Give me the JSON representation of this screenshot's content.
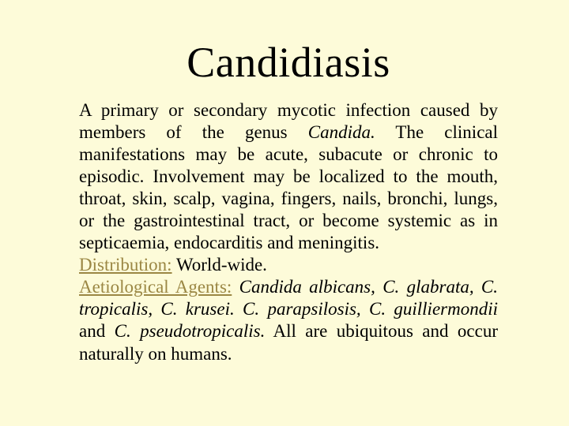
{
  "colors": {
    "background": "#fdfbd9",
    "text": "#000000",
    "label": "#9b8744"
  },
  "typography": {
    "title_font": "Comic Sans MS",
    "body_font": "Times New Roman",
    "title_fontsize": 54,
    "body_fontsize": 23,
    "body_lineheight": 1.22,
    "body_align": "justify"
  },
  "title": "Candidiasis",
  "body": {
    "p1a": "A primary or secondary mycotic infection caused by members of the genus ",
    "p1_i1": "Candida.",
    "p1b": "   The clinical manifestations may be acute, subacute or chronic to episodic.  Involvement may be localized to the mouth, throat, skin, scalp, vagina, fingers, nails, bronchi, lungs, or the gastrointestinal tract, or become systemic as in septicaemia, endocarditis and meningitis.",
    "dist_label": "Distribution:",
    "dist_text": "  World-wide.",
    "aet_label": "Aetiological Agents:",
    "aet_a": "   ",
    "aet_i": "Candida albicans, C. glabrata, C. tropicalis, C. krusei. C.  parapsilosis, C. guilliermondii",
    "aet_b": " and ",
    "aet_i2": "C. pseudotropicalis.",
    "aet_c": "  All are ubiquitous and occur naturally on humans."
  }
}
